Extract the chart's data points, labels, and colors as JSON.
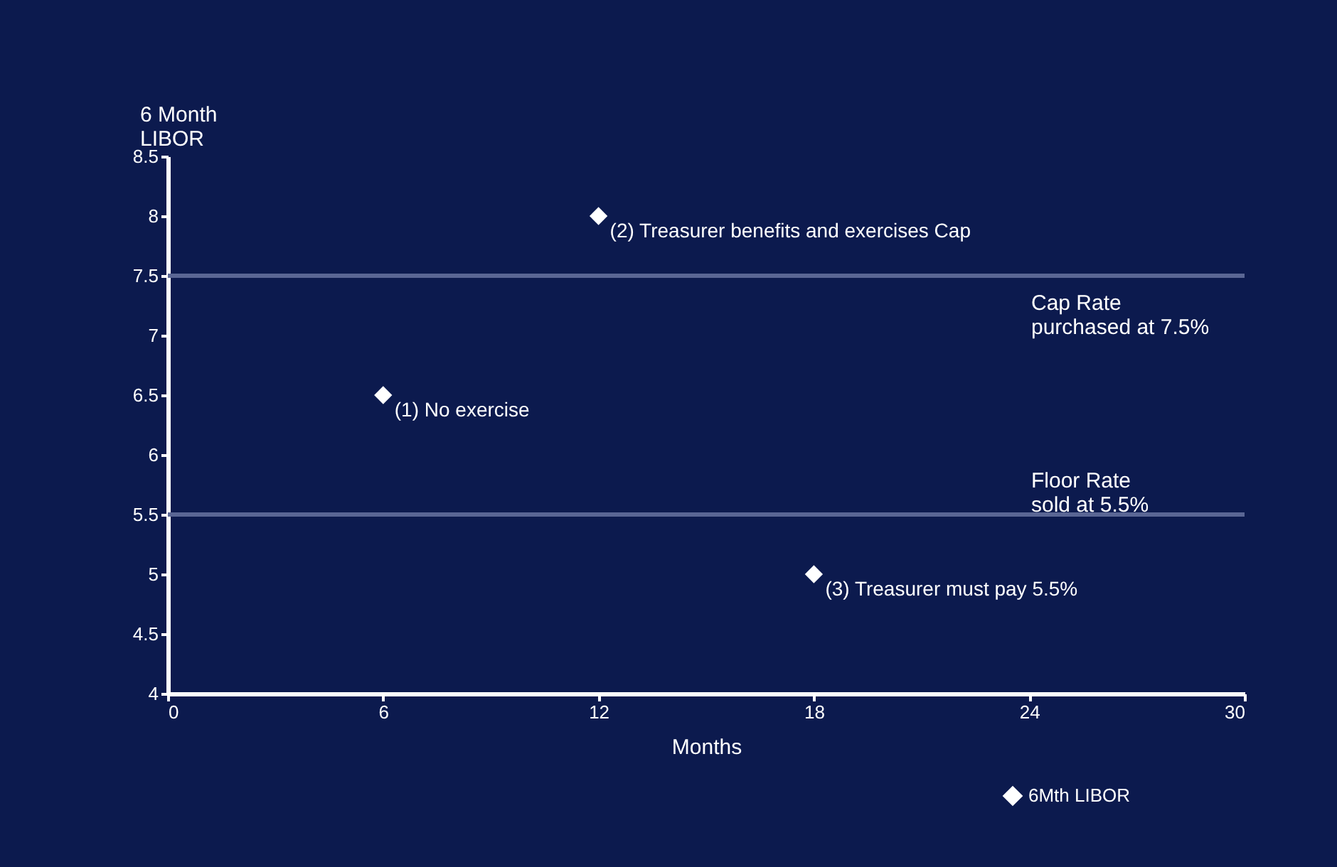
{
  "chart_data": {
    "type": "scatter",
    "xlabel": "Months",
    "ylabel": "6 Month LIBOR",
    "x": [
      6,
      12,
      18
    ],
    "series": [
      {
        "name": "6Mth LIBOR",
        "color": "#ffffff",
        "values": [
          6.5,
          8,
          5
        ]
      }
    ],
    "xlim": [
      0,
      30
    ],
    "xticks": [
      0,
      6,
      12,
      18,
      24,
      30
    ],
    "ylim": [
      4,
      8.5
    ],
    "yticks": [
      4,
      4.5,
      5,
      5.5,
      6,
      6.5,
      7,
      7.5,
      8,
      8.5
    ],
    "ref_lines": [
      {
        "axis": "y",
        "value": 7.5,
        "label": "Cap Rate\npurchased at 7.5%",
        "color": "#5a6694"
      },
      {
        "axis": "y",
        "value": 5.5,
        "label": "Floor Rate\nsold at 5.5%",
        "color": "#5a6694"
      }
    ],
    "annotations": [
      {
        "text": "(1) No exercise",
        "x": 6,
        "y": 6.5
      },
      {
        "text": "(2) Treasurer benefits and exercises Cap",
        "x": 12,
        "y": 8
      },
      {
        "text": "(3) Treasurer must pay 5.5%",
        "x": 18,
        "y": 5
      }
    ],
    "marker": "diamond",
    "grid": false,
    "legend": "bottom right"
  }
}
